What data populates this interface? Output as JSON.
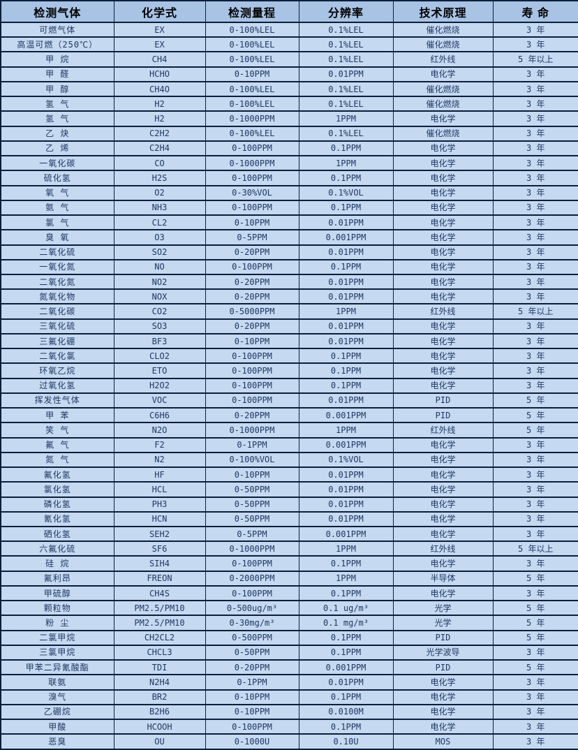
{
  "table": {
    "columns": [
      {
        "key": "gas",
        "label": "检测气体"
      },
      {
        "key": "formula",
        "label": "化学式"
      },
      {
        "key": "range",
        "label": "检测量程"
      },
      {
        "key": "resolution",
        "label": "分辨率"
      },
      {
        "key": "principle",
        "label": "技术原理"
      },
      {
        "key": "lifespan",
        "label": "寿 命"
      }
    ],
    "rows": [
      [
        "可燃气体",
        "EX",
        "0-100%LEL",
        "0.1%LEL",
        "催化燃烧",
        "3 年"
      ],
      [
        "高温可燃（250℃）",
        "EX",
        "0-100%LEL",
        "0.1%LEL",
        "催化燃烧",
        "3 年"
      ],
      [
        "甲 烷",
        "CH4",
        "0-100%LEL",
        "0.1%LEL",
        "红外线",
        "5 年以上"
      ],
      [
        "甲 醛",
        "HCHO",
        "0-10PPM",
        "0.01PPM",
        "电化学",
        "3 年"
      ],
      [
        "甲 醇",
        "CH4O",
        "0-100%LEL",
        "0.1%LEL",
        "催化燃烧",
        "3 年"
      ],
      [
        "氢 气",
        "H2",
        "0-100%LEL",
        "0.1%LEL",
        "催化燃烧",
        "3 年"
      ],
      [
        "氢 气",
        "H2",
        "0-1000PPM",
        "1PPM",
        "电化学",
        "3 年"
      ],
      [
        "乙 炔",
        "C2H2",
        "0-100%LEL",
        "0.1%LEL",
        "催化燃烧",
        "3 年"
      ],
      [
        "乙 烯",
        "C2H4",
        "0-100PPM",
        "0.1PPM",
        "电化学",
        "3 年"
      ],
      [
        "一氧化碳",
        "CO",
        "0-1000PPM",
        "1PPM",
        "电化学",
        "3 年"
      ],
      [
        "硫化氢",
        "H2S",
        "0-100PPM",
        "0.1PPM",
        "电化学",
        "3 年"
      ],
      [
        "氧 气",
        "O2",
        "0-30%VOL",
        "0.1%VOL",
        "电化学",
        "3 年"
      ],
      [
        "氨 气",
        "NH3",
        "0-100PPM",
        "0.1PPM",
        "电化学",
        "3 年"
      ],
      [
        "氯 气",
        "CL2",
        "0-10PPM",
        "0.01PPM",
        "电化学",
        "3 年"
      ],
      [
        "臭 氧",
        "O3",
        "0-5PPM",
        "0.001PPM",
        "电化学",
        "3 年"
      ],
      [
        "二氧化硫",
        "SO2",
        "0-20PPM",
        "0.01PPM",
        "电化学",
        "3 年"
      ],
      [
        "一氧化氮",
        "NO",
        "0-100PPM",
        "0.1PPM",
        "电化学",
        "3 年"
      ],
      [
        "二氧化氮",
        "NO2",
        "0-20PPM",
        "0.01PPM",
        "电化学",
        "3 年"
      ],
      [
        "氮氧化物",
        "NOX",
        "0-20PPM",
        "0.01PPM",
        "电化学",
        "3 年"
      ],
      [
        "二氧化碳",
        "CO2",
        "0-5000PPM",
        "1PPM",
        "红外线",
        "5 年以上"
      ],
      [
        "三氧化硫",
        "SO3",
        "0-20PPM",
        "0.01PPM",
        "电化学",
        "3 年"
      ],
      [
        "三氟化硼",
        "BF3",
        "0-10PPM",
        "0.01PPM",
        "电化学",
        "3 年"
      ],
      [
        "二氧化氯",
        "CLO2",
        "0-100PPM",
        "0.1PPM",
        "电化学",
        "3 年"
      ],
      [
        "环氧乙烷",
        "ETO",
        "0-100PPM",
        "0.1PPM",
        "电化学",
        "3 年"
      ],
      [
        "过氧化氢",
        "H2O2",
        "0-100PPM",
        "0.1PPM",
        "电化学",
        "3 年"
      ],
      [
        "挥发性气体",
        "VOC",
        "0-100PPM",
        "0.01PPM",
        "PID",
        "5 年"
      ],
      [
        "甲 苯",
        "C6H6",
        "0-20PPM",
        "0.001PPM",
        "PID",
        "5 年"
      ],
      [
        "笑 气",
        "N2O",
        "0-1000PPM",
        "1PPM",
        "红外线",
        "5 年"
      ],
      [
        "氟 气",
        "F2",
        "0-1PPM",
        "0.001PPM",
        "电化学",
        "3 年"
      ],
      [
        "氮 气",
        "N2",
        "0-100%VOL",
        "0.1%VOL",
        "电化学",
        "3 年"
      ],
      [
        "氟化氢",
        "HF",
        "0-10PPM",
        "0.01PPM",
        "电化学",
        "3 年"
      ],
      [
        "氯化氢",
        "HCL",
        "0-50PPM",
        "0.01PPM",
        "电化学",
        "3 年"
      ],
      [
        "磷化氢",
        "PH3",
        "0-50PPM",
        "0.01PPM",
        "电化学",
        "3 年"
      ],
      [
        "氰化氢",
        "HCN",
        "0-50PPM",
        "0.01PPM",
        "电化学",
        "3 年"
      ],
      [
        "硒化氢",
        "SEH2",
        "0-5PPM",
        "0.001PPM",
        "电化学",
        "3 年"
      ],
      [
        "六氟化硫",
        "SF6",
        "0-1000PPM",
        "1PPM",
        "红外线",
        "5 年以上"
      ],
      [
        "硅 烷",
        "SIH4",
        "0-100PPM",
        "0.1PPM",
        "电化学",
        "3 年"
      ],
      [
        "氟利昂",
        "FREON",
        "0-2000PPM",
        "1PPM",
        "半导体",
        "5 年"
      ],
      [
        "甲硫醇",
        "CH4S",
        "0-100PPM",
        "0.1PPM",
        "电化学",
        "3 年"
      ],
      [
        "颗粒物",
        "PM2.5/PM10",
        "0-500ug/m³",
        "0.1 ug/m³",
        "光学",
        "5 年"
      ],
      [
        "粉 尘",
        "PM2.5/PM10",
        "0-30mg/m³",
        "0.1 mg/m³",
        "光学",
        "5 年"
      ],
      [
        "二氯甲烷",
        "CH2CL2",
        "0-500PPM",
        "0.1PPM",
        "PID",
        "5 年"
      ],
      [
        "三氯甲烷",
        "CHCL3",
        "0-50PPM",
        "0.1PPM",
        "光学波导",
        "3 年"
      ],
      [
        "甲苯二异氰酸酯",
        "TDI",
        "0-20PPM",
        "0.001PPM",
        "PID",
        "5 年"
      ],
      [
        "联氨",
        "N2H4",
        "0-1PPM",
        "0.01PPM",
        "电化学",
        "3 年"
      ],
      [
        "溴气",
        "BR2",
        "0-10PPM",
        "0.1PPM",
        "电化学",
        "3 年"
      ],
      [
        "乙硼烷",
        "B2H6",
        "0-10PPM",
        "0.0100M",
        "电化学",
        "3 年"
      ],
      [
        "甲酸",
        "HCOOH",
        "0-100PPM",
        "0.1PPM",
        "电化学",
        "3 年"
      ],
      [
        "恶臭",
        "OU",
        "0-1000U",
        "0.10U",
        "MOS",
        "3 年"
      ]
    ]
  },
  "colors": {
    "header_fill": "#a8c3e4",
    "body_fill": "#c5d9f1",
    "border": "#0b1e3a",
    "body_text": "#1f3864",
    "header_text": "#000000"
  }
}
